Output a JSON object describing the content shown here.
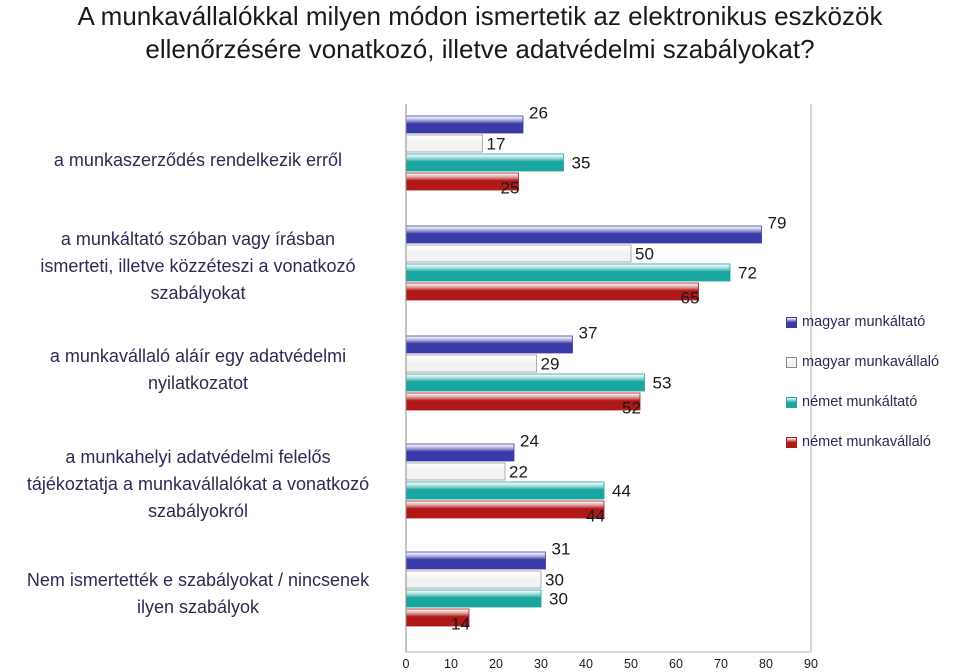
{
  "title_lines": [
    "A munkavállalókkal milyen módon ismertetik az elektronikus eszközök",
    "ellenőrzésére vonatkozó, illetve adatvédelmi szabályokat?"
  ],
  "chart_data": {
    "type": "bar",
    "orientation": "horizontal",
    "title": "A munkavállalókkal milyen módon ismertetik az elektronikus eszközök ellenőrzésére vonatkozó, illetve adatvédelmi szabályokat?",
    "xlabel": "",
    "ylabel": "",
    "xlim": [
      0,
      90
    ],
    "xticks": [
      "0",
      "10",
      "20",
      "30",
      "40",
      "50",
      "60",
      "70",
      "80",
      "90"
    ],
    "grid": false,
    "legend_position": "right",
    "categories": [
      [
        "a munkaszerződés rendelkezik erről"
      ],
      [
        "a munkáltató szóban vagy írásban",
        "ismerteti, illetve közzéteszi a vonatkozó",
        "szabályokat"
      ],
      [
        "a munkavállaló aláír egy adatvédelmi",
        "nyilatkozatot"
      ],
      [
        "a munkahelyi adatvédelmi felelős",
        "tájékoztatja a munkavállalókat a vonatkozó",
        "szabályokról"
      ],
      [
        "Nem ismertették e szabályokat / nincsenek",
        "ilyen szabályok"
      ]
    ],
    "series": [
      {
        "name": "magyar munkáltató",
        "color": "#3a3aa8",
        "values": [
          26,
          79,
          37,
          24,
          31
        ]
      },
      {
        "name": "magyar munkavállaló",
        "color": "#f2f2f2",
        "values": [
          17,
          50,
          29,
          22,
          30
        ]
      },
      {
        "name": "német munkáltató",
        "color": "#1aa6a0",
        "values": [
          35,
          72,
          53,
          44,
          30
        ]
      },
      {
        "name": "német munkavállaló",
        "color": "#b01818",
        "values": [
          25,
          65,
          52,
          44,
          14
        ]
      }
    ]
  }
}
